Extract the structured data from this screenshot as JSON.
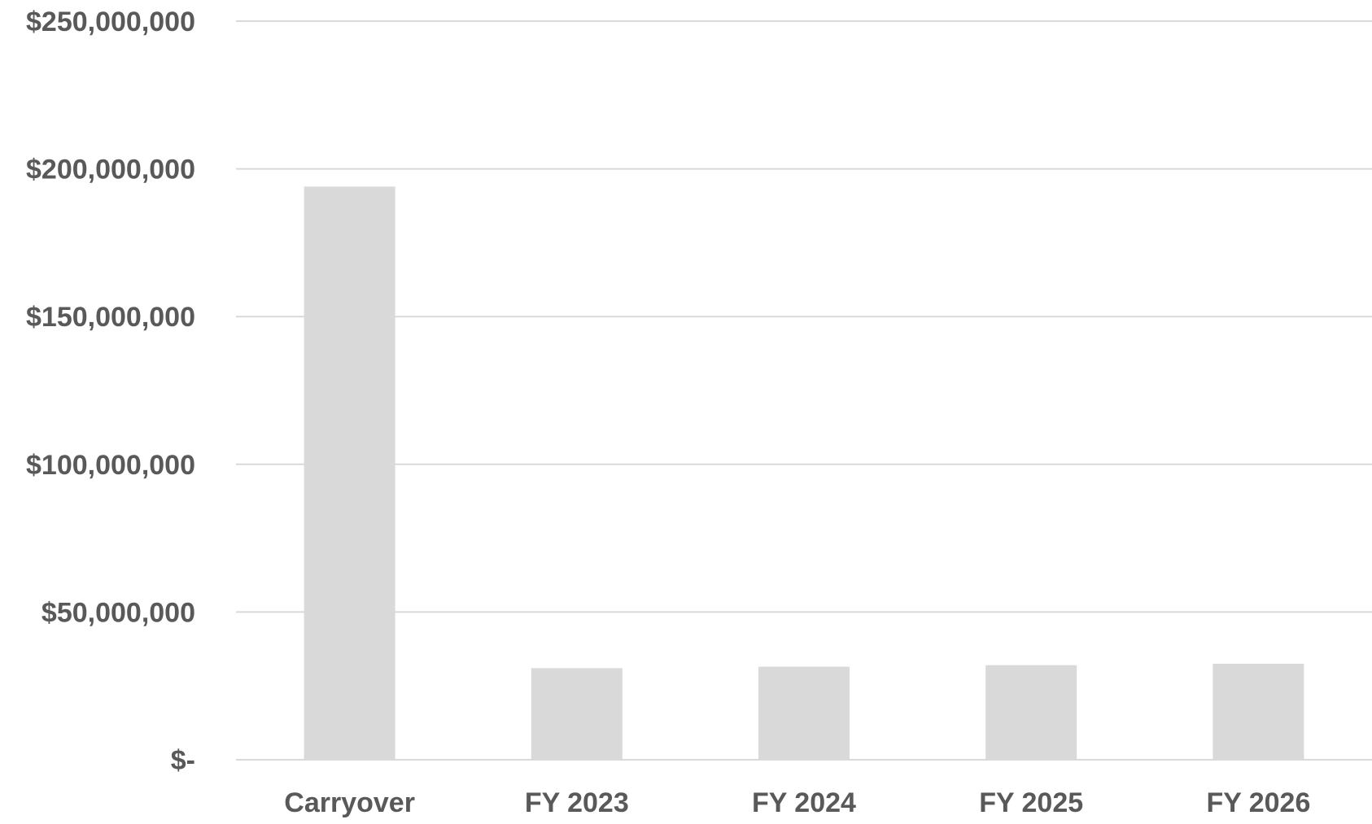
{
  "chart_data": {
    "type": "bar",
    "categories": [
      "Carryover",
      "FY 2023",
      "FY 2024",
      "FY 2025",
      "FY 2026"
    ],
    "values": [
      194000000,
      31000000,
      31500000,
      32000000,
      32500000
    ],
    "ylim": [
      0,
      250000000
    ],
    "ytick_values": [
      0,
      50000000,
      100000000,
      150000000,
      200000000,
      250000000
    ],
    "ytick_labels": [
      "$-",
      "$50,000,000",
      "$100,000,000",
      "$150,000,000",
      "$200,000,000",
      "$250,000,000"
    ],
    "grid": true,
    "bar_color": "#d9d9d9",
    "grid_color": "#d9d9d9",
    "text_color": "#595959"
  }
}
